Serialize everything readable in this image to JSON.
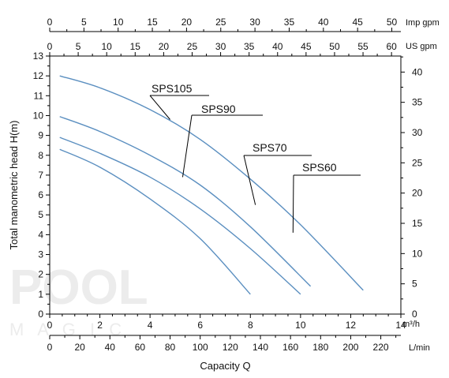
{
  "chart_data": {
    "type": "line",
    "title": "",
    "xlabel": "Capacity Q",
    "ylabel": "Total manometric head H(m)",
    "xlim": [
      0,
      14
    ],
    "ylim": [
      0,
      13
    ],
    "x_unit": "m³/h",
    "x_ticks": [
      0,
      2,
      4,
      6,
      8,
      10,
      12,
      14
    ],
    "y_ticks": [
      0,
      1,
      2,
      3,
      4,
      5,
      6,
      7,
      8,
      9,
      10,
      11,
      12,
      13
    ],
    "secondary_axes": {
      "imp_gpm": {
        "label": "Imp gpm",
        "ticks": [
          0,
          5,
          10,
          15,
          20,
          25,
          30,
          35,
          40,
          45,
          50
        ]
      },
      "us_gpm": {
        "label": "US gpm",
        "ticks": [
          0,
          5,
          10,
          15,
          20,
          25,
          30,
          35,
          40,
          45,
          50,
          55,
          60
        ]
      },
      "l_min": {
        "label": "L/min",
        "ticks": [
          0,
          20,
          40,
          60,
          80,
          100,
          120,
          140,
          160,
          180,
          200,
          220
        ]
      },
      "right_ft": {
        "label": "",
        "ticks": [
          0,
          5,
          10,
          15,
          20,
          25,
          30,
          35,
          40
        ]
      }
    },
    "grid": false,
    "series": [
      {
        "name": "SPS105",
        "x": [
          0.4,
          2,
          4,
          6,
          8,
          10,
          12.5
        ],
        "y": [
          12,
          11.4,
          10.3,
          8.8,
          6.8,
          4.5,
          1.2
        ]
      },
      {
        "name": "SPS90",
        "x": [
          0.4,
          2,
          4,
          6,
          8,
          10.4
        ],
        "y": [
          9.95,
          9.2,
          8.0,
          6.5,
          4.4,
          1.4
        ]
      },
      {
        "name": "SPS70",
        "x": [
          0.4,
          2,
          4,
          6,
          8,
          10
        ],
        "y": [
          8.9,
          8.1,
          6.9,
          5.3,
          3.3,
          1.0
        ]
      },
      {
        "name": "SPS60",
        "x": [
          0.4,
          2,
          4,
          6,
          8
        ],
        "y": [
          8.3,
          7.4,
          5.8,
          3.8,
          1.0
        ]
      }
    ]
  },
  "watermark": {
    "text": "POOL",
    "sub": "M A G I C"
  },
  "colors": {
    "curve": "#5b8fc0",
    "axis": "#000000",
    "watermark": "#ececec"
  }
}
